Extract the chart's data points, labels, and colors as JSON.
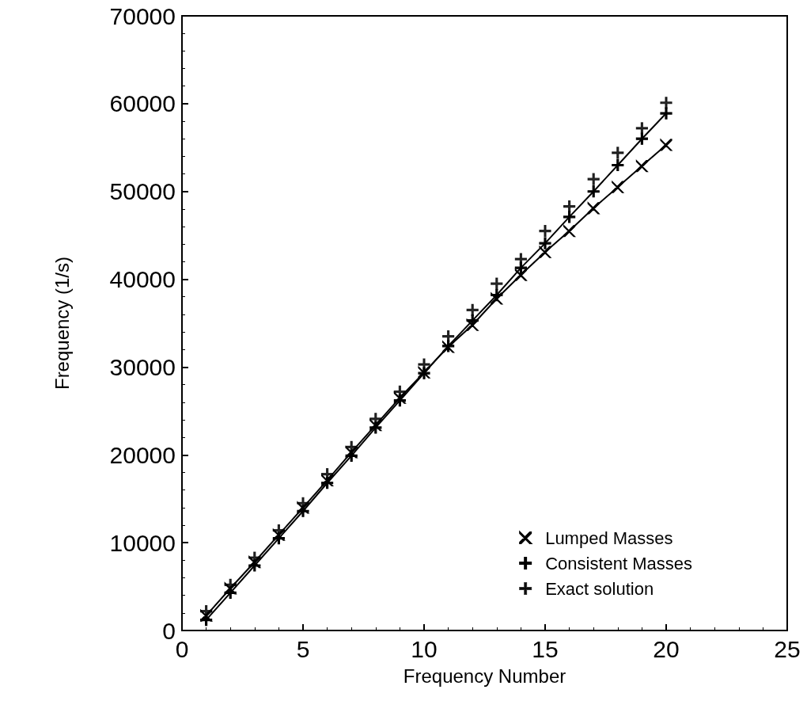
{
  "chart_data": {
    "type": "line",
    "xlabel": "Frequency Number",
    "ylabel": "Frequency (1/s)",
    "x": [
      1,
      2,
      3,
      4,
      5,
      6,
      7,
      8,
      9,
      10,
      11,
      12,
      13,
      14,
      15,
      16,
      17,
      18,
      19,
      20
    ],
    "xlim": [
      0,
      25
    ],
    "xticks": [
      0,
      5,
      10,
      15,
      20,
      25
    ],
    "ylim": [
      0,
      70000
    ],
    "yticks": [
      0,
      10000,
      20000,
      30000,
      40000,
      50000,
      60000,
      70000
    ],
    "grid": false,
    "legend": "bottom right",
    "series": [
      {
        "name": "Lumped Masses",
        "marker": "cross",
        "color": "#000000",
        "values": [
          1700,
          4800,
          7800,
          10900,
          14000,
          17100,
          20300,
          23400,
          26500,
          29400,
          32300,
          34800,
          37800,
          40500,
          43100,
          45500,
          48100,
          50500,
          52900,
          55300
        ]
      },
      {
        "name": "Consistent Masses",
        "marker": "plus",
        "color": "#000000",
        "values": [
          1200,
          4300,
          7400,
          10500,
          13600,
          16800,
          19900,
          23100,
          26200,
          29300,
          32400,
          35300,
          38200,
          41300,
          44100,
          47100,
          50000,
          53000,
          56000,
          58900
        ]
      },
      {
        "name": "Exact solution",
        "type": "scatter",
        "marker": "plus",
        "color": "#000000",
        "values": [
          2200,
          5200,
          8300,
          11400,
          14500,
          17800,
          20900,
          24100,
          27200,
          30300,
          33500,
          36500,
          39500,
          42300,
          45500,
          48300,
          51400,
          54400,
          57200,
          60100
        ]
      }
    ]
  }
}
